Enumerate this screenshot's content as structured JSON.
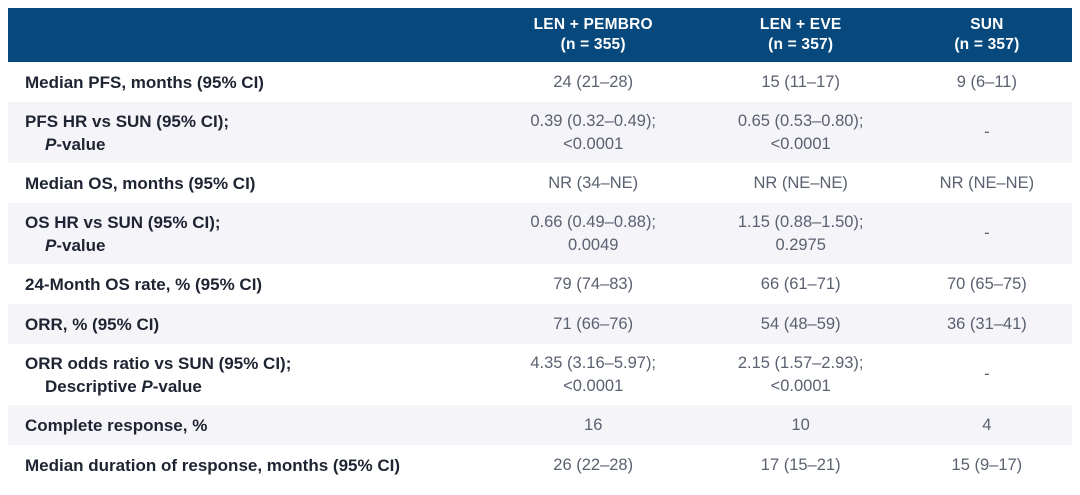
{
  "colors": {
    "header_bg": "#07487D",
    "header_text": "#FFFFFF",
    "shaded_row_bg": "#F5F4F8",
    "row_label_text": "#1F2433",
    "value_text": "#5A6170"
  },
  "table": {
    "header": [
      {
        "name": "LEN + PEMBRO",
        "n": "(n = 355)"
      },
      {
        "name": "LEN + EVE",
        "n": "(n = 357)"
      },
      {
        "name": "SUN",
        "n": "(n = 357)"
      }
    ],
    "rows": [
      {
        "label1": "Median PFS, months (95% CI)",
        "cells": [
          "24 (21–28)",
          "15 (11–17)",
          "9 (6–11)"
        ]
      },
      {
        "label1": "PFS HR vs SUN (95% CI);",
        "label2pre": "",
        "label2it": "P",
        "label2rest": "-value",
        "cells": [
          [
            "0.39 (0.32–0.49);",
            "<0.0001"
          ],
          [
            "0.65 (0.53–0.80);",
            "<0.0001"
          ],
          "-"
        ]
      },
      {
        "label1": "Median OS, months (95% CI)",
        "cells": [
          "NR (34–NE)",
          "NR (NE–NE)",
          "NR (NE–NE)"
        ]
      },
      {
        "label1": "OS HR vs SUN (95% CI);",
        "label2pre": "",
        "label2it": "P",
        "label2rest": "-value",
        "cells": [
          [
            "0.66 (0.49–0.88);",
            "0.0049"
          ],
          [
            "1.15 (0.88–1.50);",
            "0.2975"
          ],
          "-"
        ]
      },
      {
        "label1": "24-Month OS rate, % (95% CI)",
        "cells": [
          "79 (74–83)",
          "66 (61–71)",
          "70 (65–75)"
        ]
      },
      {
        "label1": "ORR, % (95% CI)",
        "cells": [
          "71 (66–76)",
          "54 (48–59)",
          "36 (31–41)"
        ]
      },
      {
        "label1": "ORR odds ratio vs SUN (95% CI);",
        "label2pre": "Descriptive ",
        "label2it": "P",
        "label2rest": "-value",
        "cells": [
          [
            "4.35 (3.16–5.97);",
            "<0.0001"
          ],
          [
            "2.15 (1.57–2.93);",
            "<0.0001"
          ],
          "-"
        ]
      },
      {
        "label1": "Complete response, %",
        "cells": [
          "16",
          "10",
          "4"
        ]
      },
      {
        "label1": "Median duration of response, months (95% CI)",
        "cells": [
          "26 (22–28)",
          "17 (15–21)",
          "15 (9–17)"
        ]
      }
    ]
  },
  "chart_data": {
    "type": "table",
    "columns": [
      "",
      "LEN + PEMBRO (n = 355)",
      "LEN + EVE (n = 357)",
      "SUN (n = 357)"
    ],
    "rows": [
      [
        "Median PFS, months (95% CI)",
        "24 (21–28)",
        "15 (11–17)",
        "9 (6–11)"
      ],
      [
        "PFS HR vs SUN (95% CI); P-value",
        "0.39 (0.32–0.49); <0.0001",
        "0.65 (0.53–0.80); <0.0001",
        "-"
      ],
      [
        "Median OS, months (95% CI)",
        "NR (34–NE)",
        "NR (NE–NE)",
        "NR (NE–NE)"
      ],
      [
        "OS HR vs SUN (95% CI); P-value",
        "0.66 (0.49–0.88); 0.0049",
        "1.15 (0.88–1.50); 0.2975",
        "-"
      ],
      [
        "24-Month OS rate, % (95% CI)",
        "79 (74–83)",
        "66 (61–71)",
        "70 (65–75)"
      ],
      [
        "ORR, % (95% CI)",
        "71 (66–76)",
        "54 (48–59)",
        "36 (31–41)"
      ],
      [
        "ORR odds ratio vs SUN (95% CI); Descriptive P-value",
        "4.35 (3.16–5.97); <0.0001",
        "2.15 (1.57–2.93); <0.0001",
        "-"
      ],
      [
        "Complete response, %",
        "16",
        "10",
        "4"
      ],
      [
        "Median duration of response, months (95% CI)",
        "26 (22–28)",
        "17 (15–21)",
        "15 (9–17)"
      ]
    ]
  }
}
